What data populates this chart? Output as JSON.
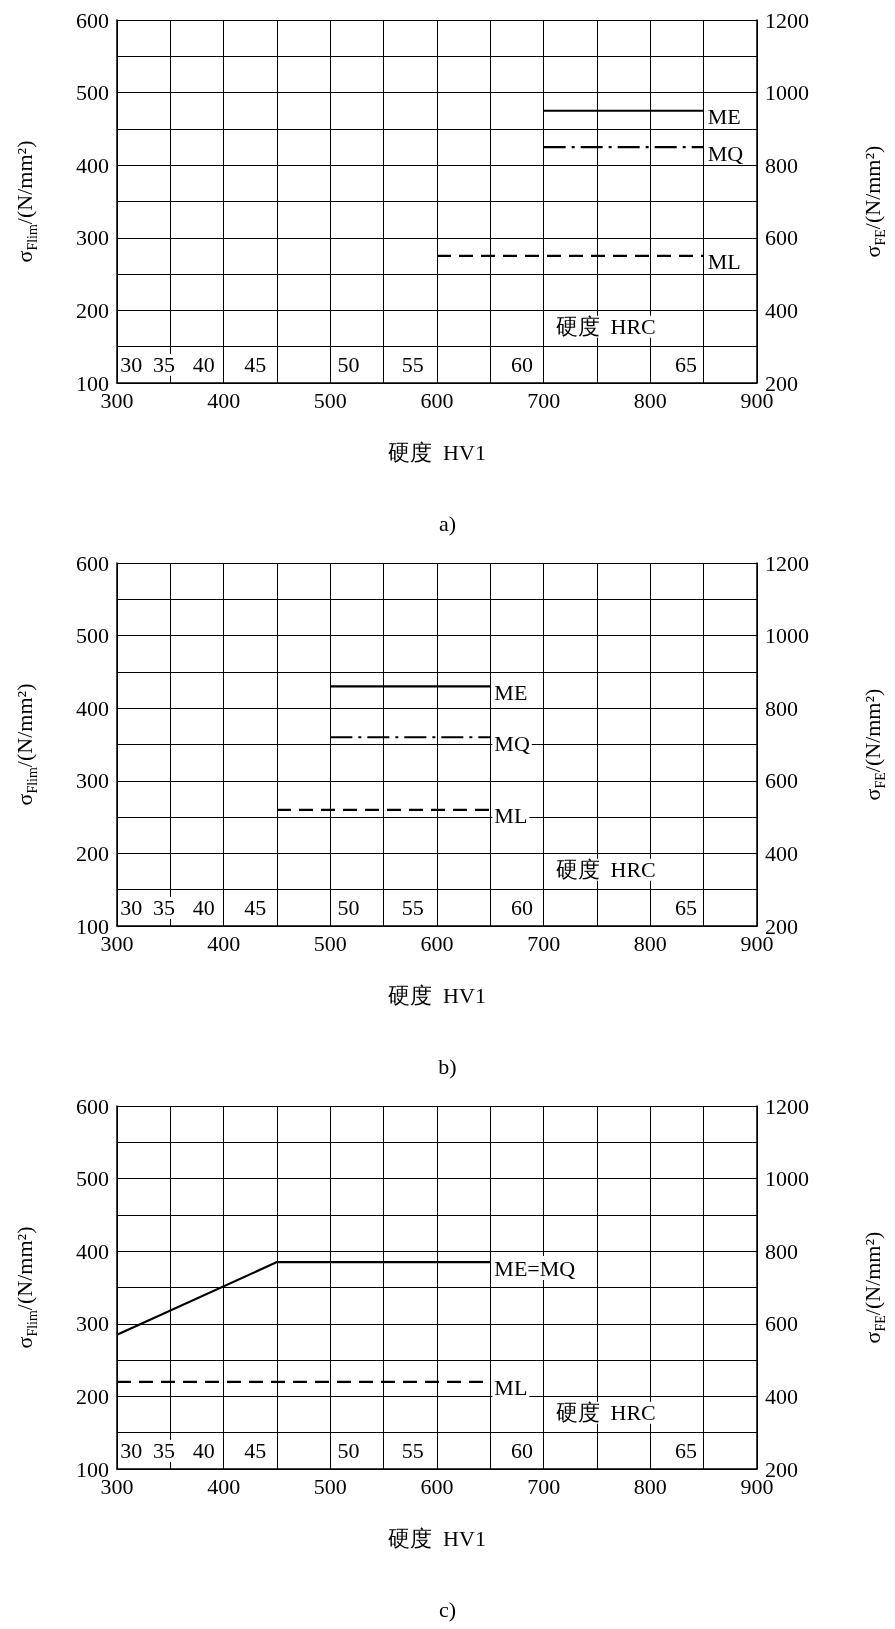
{
  "chart_data": [
    {
      "type": "line",
      "title": "a)",
      "xlabel": "硬度  HV1",
      "ylabel": "σ$_{Flim}$/(N/mm²)",
      "y2label": "σ$_{FE}$/(N/mm²)",
      "xlim": [
        300,
        900
      ],
      "xticks": [
        300,
        400,
        500,
        600,
        700,
        800,
        900
      ],
      "ylim": [
        100,
        600
      ],
      "yticks": [
        100,
        200,
        300,
        400,
        500,
        600
      ],
      "y2lim": [
        200,
        1200
      ],
      "y2ticks": [
        200,
        400,
        600,
        800,
        1000,
        1200
      ],
      "grid": true,
      "legend": false,
      "marker": "none",
      "series": [
        {
          "name": "ME",
          "color": "#000000",
          "line_style": "solid",
          "x": [
            700,
            850
          ],
          "values": [
            475,
            475
          ]
        },
        {
          "name": "MQ",
          "color": "#000000",
          "line_style": "dashdot",
          "x": [
            700,
            850
          ],
          "values": [
            425,
            425
          ]
        },
        {
          "name": "ML",
          "color": "#000000",
          "line_style": "dashed",
          "x": [
            600,
            850
          ],
          "values": [
            275,
            275
          ]
        }
      ],
      "annotations": [
        "硬度  HRC",
        "30",
        "35",
        "40",
        "45",
        "50",
        "55",
        "60",
        "65"
      ]
    },
    {
      "type": "line",
      "title": "b)",
      "xlabel": "硬度  HV1",
      "ylabel": "σ$_{Flim}$/(N/mm²)",
      "y2label": "σ$_{FE}$/(N/mm²)",
      "xlim": [
        300,
        900
      ],
      "xticks": [
        300,
        400,
        500,
        600,
        700,
        800,
        900
      ],
      "ylim": [
        100,
        600
      ],
      "yticks": [
        100,
        200,
        300,
        400,
        500,
        600
      ],
      "y2lim": [
        200,
        1200
      ],
      "y2ticks": [
        200,
        400,
        600,
        800,
        1000,
        1200
      ],
      "grid": true,
      "legend": false,
      "marker": "none",
      "series": [
        {
          "name": "ME",
          "color": "#000000",
          "line_style": "solid",
          "x": [
            500,
            650
          ],
          "values": [
            430,
            430
          ]
        },
        {
          "name": "MQ",
          "color": "#000000",
          "line_style": "dashdot",
          "x": [
            500,
            650
          ],
          "values": [
            360,
            360
          ]
        },
        {
          "name": "ML",
          "color": "#000000",
          "line_style": "dashed",
          "x": [
            450,
            650
          ],
          "values": [
            260,
            260
          ]
        }
      ],
      "annotations": [
        "硬度  HRC",
        "30",
        "35",
        "40",
        "45",
        "50",
        "55",
        "60",
        "65"
      ]
    },
    {
      "type": "line",
      "title": "c)",
      "xlabel": "硬度  HV1",
      "ylabel": "σ$_{Flim}$/(N/mm²)",
      "y2label": "σ$_{FE}$/(N/mm²)",
      "xlim": [
        300,
        900
      ],
      "xticks": [
        300,
        400,
        500,
        600,
        700,
        800,
        900
      ],
      "ylim": [
        100,
        600
      ],
      "yticks": [
        100,
        200,
        300,
        400,
        500,
        600
      ],
      "y2lim": [
        200,
        1200
      ],
      "y2ticks": [
        200,
        400,
        600,
        800,
        1000,
        1200
      ],
      "grid": true,
      "legend": false,
      "marker": "none",
      "series": [
        {
          "name": "ME=MQ",
          "color": "#000000",
          "line_style": "solid",
          "x": [
            300,
            450,
            650
          ],
          "values": [
            285,
            385,
            385
          ]
        },
        {
          "name": "ML",
          "color": "#000000",
          "line_style": "dashed",
          "x": [
            300,
            650
          ],
          "values": [
            220,
            220
          ]
        }
      ],
      "annotations": [
        "硬度  HRC",
        "30",
        "35",
        "40",
        "45",
        "50",
        "55",
        "60",
        "65"
      ]
    }
  ]
}
